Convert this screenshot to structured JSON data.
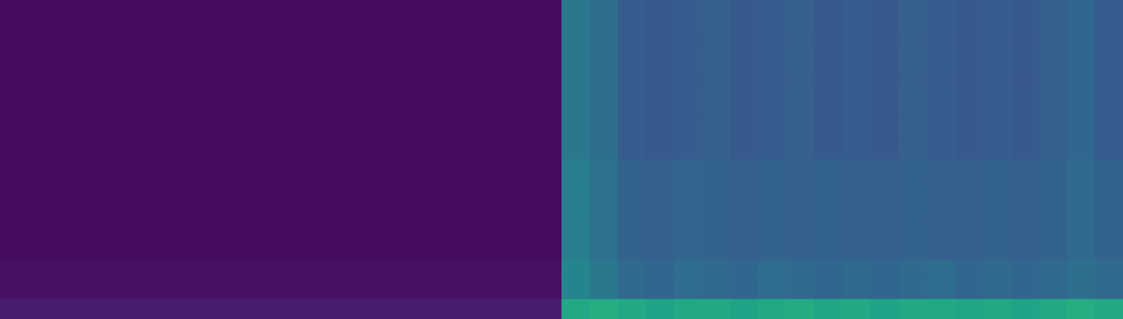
{
  "chart_data": {
    "type": "heatmap",
    "tick_labels": false,
    "zlim": [
      0,
      1
    ],
    "values": [
      [
        0.03,
        0.03,
        0.03,
        0.03,
        0.03,
        0.03,
        0.03,
        0.03,
        0.03,
        0.03,
        0.03,
        0.03,
        0.03,
        0.03,
        0.03,
        0.03,
        0.03,
        0.03,
        0.03,
        0.03,
        0.4,
        0.36,
        0.29,
        0.28,
        0.29,
        0.3,
        0.28,
        0.29,
        0.3,
        0.28,
        0.29,
        0.28,
        0.3,
        0.29,
        0.28,
        0.29,
        0.28,
        0.3,
        0.33,
        0.29
      ],
      [
        0.03,
        0.03,
        0.03,
        0.03,
        0.03,
        0.03,
        0.03,
        0.03,
        0.03,
        0.03,
        0.03,
        0.03,
        0.03,
        0.03,
        0.03,
        0.03,
        0.03,
        0.03,
        0.03,
        0.03,
        0.4,
        0.36,
        0.29,
        0.28,
        0.29,
        0.3,
        0.28,
        0.29,
        0.3,
        0.28,
        0.29,
        0.28,
        0.3,
        0.29,
        0.28,
        0.29,
        0.28,
        0.3,
        0.33,
        0.29
      ],
      [
        0.03,
        0.03,
        0.03,
        0.03,
        0.03,
        0.03,
        0.03,
        0.03,
        0.03,
        0.03,
        0.03,
        0.03,
        0.03,
        0.03,
        0.03,
        0.03,
        0.03,
        0.03,
        0.03,
        0.03,
        0.4,
        0.36,
        0.29,
        0.28,
        0.29,
        0.3,
        0.28,
        0.29,
        0.3,
        0.28,
        0.29,
        0.28,
        0.3,
        0.29,
        0.28,
        0.29,
        0.28,
        0.3,
        0.33,
        0.29
      ],
      [
        0.03,
        0.03,
        0.03,
        0.03,
        0.03,
        0.03,
        0.03,
        0.03,
        0.03,
        0.03,
        0.03,
        0.03,
        0.03,
        0.03,
        0.03,
        0.03,
        0.03,
        0.03,
        0.03,
        0.03,
        0.4,
        0.36,
        0.29,
        0.28,
        0.29,
        0.3,
        0.28,
        0.29,
        0.3,
        0.28,
        0.29,
        0.28,
        0.3,
        0.29,
        0.28,
        0.29,
        0.28,
        0.3,
        0.33,
        0.29
      ],
      [
        0.03,
        0.03,
        0.03,
        0.03,
        0.03,
        0.03,
        0.03,
        0.03,
        0.03,
        0.03,
        0.03,
        0.03,
        0.03,
        0.03,
        0.03,
        0.03,
        0.03,
        0.03,
        0.03,
        0.03,
        0.4,
        0.36,
        0.29,
        0.28,
        0.29,
        0.3,
        0.28,
        0.29,
        0.3,
        0.28,
        0.29,
        0.28,
        0.3,
        0.29,
        0.28,
        0.29,
        0.28,
        0.3,
        0.33,
        0.29
      ],
      [
        0.03,
        0.03,
        0.03,
        0.03,
        0.03,
        0.03,
        0.03,
        0.03,
        0.03,
        0.03,
        0.03,
        0.03,
        0.03,
        0.03,
        0.03,
        0.03,
        0.03,
        0.03,
        0.03,
        0.03,
        0.4,
        0.36,
        0.29,
        0.28,
        0.29,
        0.3,
        0.28,
        0.29,
        0.3,
        0.28,
        0.29,
        0.28,
        0.3,
        0.29,
        0.28,
        0.29,
        0.28,
        0.3,
        0.33,
        0.29
      ],
      [
        0.03,
        0.03,
        0.03,
        0.03,
        0.03,
        0.03,
        0.03,
        0.03,
        0.03,
        0.03,
        0.03,
        0.03,
        0.03,
        0.03,
        0.03,
        0.03,
        0.03,
        0.03,
        0.03,
        0.03,
        0.4,
        0.36,
        0.29,
        0.28,
        0.29,
        0.3,
        0.28,
        0.29,
        0.3,
        0.28,
        0.29,
        0.28,
        0.3,
        0.29,
        0.28,
        0.29,
        0.28,
        0.3,
        0.33,
        0.29
      ],
      [
        0.03,
        0.03,
        0.03,
        0.03,
        0.03,
        0.03,
        0.03,
        0.03,
        0.03,
        0.03,
        0.03,
        0.03,
        0.03,
        0.03,
        0.03,
        0.03,
        0.03,
        0.03,
        0.03,
        0.03,
        0.4,
        0.36,
        0.29,
        0.28,
        0.29,
        0.3,
        0.28,
        0.29,
        0.3,
        0.28,
        0.29,
        0.28,
        0.3,
        0.29,
        0.28,
        0.29,
        0.28,
        0.3,
        0.33,
        0.29
      ],
      [
        0.03,
        0.03,
        0.03,
        0.03,
        0.03,
        0.03,
        0.03,
        0.03,
        0.03,
        0.03,
        0.03,
        0.03,
        0.03,
        0.03,
        0.03,
        0.03,
        0.03,
        0.03,
        0.03,
        0.03,
        0.42,
        0.37,
        0.31,
        0.3,
        0.32,
        0.31,
        0.3,
        0.31,
        0.3,
        0.31,
        0.3,
        0.3,
        0.31,
        0.3,
        0.3,
        0.31,
        0.3,
        0.31,
        0.34,
        0.31
      ],
      [
        0.03,
        0.03,
        0.03,
        0.03,
        0.03,
        0.03,
        0.03,
        0.03,
        0.03,
        0.03,
        0.03,
        0.03,
        0.03,
        0.03,
        0.03,
        0.03,
        0.03,
        0.03,
        0.03,
        0.03,
        0.42,
        0.37,
        0.31,
        0.3,
        0.32,
        0.31,
        0.3,
        0.31,
        0.3,
        0.31,
        0.3,
        0.3,
        0.31,
        0.3,
        0.3,
        0.31,
        0.3,
        0.31,
        0.34,
        0.31
      ],
      [
        0.03,
        0.03,
        0.03,
        0.03,
        0.03,
        0.03,
        0.03,
        0.03,
        0.03,
        0.03,
        0.03,
        0.03,
        0.03,
        0.03,
        0.03,
        0.03,
        0.03,
        0.03,
        0.03,
        0.03,
        0.42,
        0.37,
        0.31,
        0.3,
        0.32,
        0.31,
        0.3,
        0.31,
        0.3,
        0.31,
        0.3,
        0.3,
        0.31,
        0.3,
        0.3,
        0.31,
        0.3,
        0.31,
        0.34,
        0.31
      ],
      [
        0.03,
        0.03,
        0.03,
        0.03,
        0.03,
        0.03,
        0.03,
        0.03,
        0.03,
        0.03,
        0.03,
        0.03,
        0.03,
        0.03,
        0.03,
        0.03,
        0.03,
        0.03,
        0.03,
        0.03,
        0.42,
        0.37,
        0.31,
        0.3,
        0.32,
        0.31,
        0.3,
        0.31,
        0.3,
        0.31,
        0.3,
        0.3,
        0.31,
        0.3,
        0.3,
        0.31,
        0.3,
        0.31,
        0.34,
        0.31
      ],
      [
        0.03,
        0.03,
        0.03,
        0.03,
        0.03,
        0.03,
        0.03,
        0.03,
        0.03,
        0.03,
        0.03,
        0.03,
        0.03,
        0.03,
        0.03,
        0.03,
        0.03,
        0.03,
        0.03,
        0.03,
        0.42,
        0.37,
        0.31,
        0.3,
        0.32,
        0.31,
        0.3,
        0.31,
        0.3,
        0.31,
        0.3,
        0.3,
        0.31,
        0.3,
        0.3,
        0.31,
        0.3,
        0.31,
        0.34,
        0.31
      ],
      [
        0.04,
        0.04,
        0.04,
        0.04,
        0.04,
        0.04,
        0.04,
        0.04,
        0.04,
        0.04,
        0.04,
        0.04,
        0.04,
        0.04,
        0.04,
        0.04,
        0.04,
        0.04,
        0.04,
        0.04,
        0.45,
        0.4,
        0.34,
        0.33,
        0.35,
        0.34,
        0.33,
        0.35,
        0.34,
        0.33,
        0.34,
        0.33,
        0.34,
        0.35,
        0.33,
        0.34,
        0.33,
        0.34,
        0.36,
        0.34
      ],
      [
        0.04,
        0.04,
        0.04,
        0.04,
        0.04,
        0.04,
        0.04,
        0.04,
        0.04,
        0.04,
        0.04,
        0.04,
        0.04,
        0.04,
        0.04,
        0.04,
        0.04,
        0.04,
        0.04,
        0.04,
        0.45,
        0.4,
        0.34,
        0.33,
        0.35,
        0.34,
        0.33,
        0.35,
        0.34,
        0.33,
        0.34,
        0.33,
        0.34,
        0.35,
        0.33,
        0.34,
        0.33,
        0.34,
        0.36,
        0.34
      ],
      [
        0.08,
        0.08,
        0.08,
        0.08,
        0.08,
        0.08,
        0.08,
        0.08,
        0.08,
        0.08,
        0.08,
        0.08,
        0.08,
        0.08,
        0.08,
        0.08,
        0.08,
        0.08,
        0.08,
        0.08,
        0.6,
        0.62,
        0.6,
        0.58,
        0.6,
        0.6,
        0.58,
        0.6,
        0.61,
        0.59,
        0.6,
        0.58,
        0.6,
        0.6,
        0.59,
        0.6,
        0.58,
        0.6,
        0.62,
        0.6
      ]
    ]
  }
}
